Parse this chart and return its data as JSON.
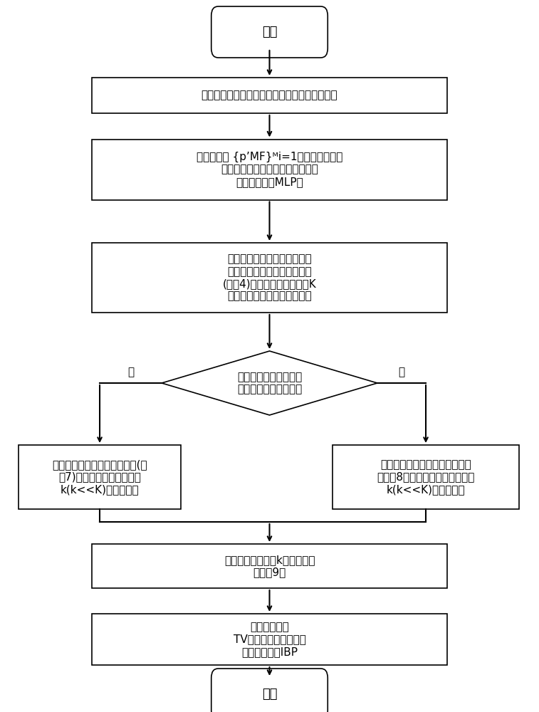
{
  "bg_color": "#ffffff",
  "line_color": "#000000",
  "box_color": "#ffffff",
  "text_color": "#000000",
  "start_label": "开始",
  "end_label": "结束",
  "box1_label": "构造训练特征集：提取训练块的中、高频特征对",
  "box2_line1": "输入测试块 {p",
  "box2_line1b": "MF",
  "box2_line1c": "}",
  "box2_line1d": "i=1",
  "box2_line1e": "得到中频特征；",
  "box2_line2": "用测地聚类将训练集聚为多个类别",
  "box2_line3": "（最大线性块MLP）",
  "box3_line1": "利用中频特征相似度，为输入",
  "box3_line2": "测试块选取最相似的训练子集",
  "box3_line3": "(公式4)，在所选子集内找到K",
  "box3_line4": "个中频最近邻及对应高频近邻",
  "diamond_line1": "求当前测试块的梯度直",
  "diamond_line2": "方图判断是否为边缘块",
  "yes_label": "是",
  "no_label": "否",
  "box_left_line1": "运用对边缘块的筛选判别准则(公",
  "box_left_line2": "式7)，对邻域进行精选得到",
  "box_left_line3": "k(k<<K)个高频近邻",
  "box_right_line1": "运用对非边缘块的筛选判别准则",
  "box_right_line2": "（公式8），对邻域进行精选得到",
  "box_right_line3": "k(k<<K)个高频近邻",
  "box4_line1": "运用最小二乘法将k个近邻嵌入",
  "box4_line2": "（公式9）",
  "box5_line1": "后处理操作：",
  "box5_line2": "TV的图像去模糊正则，",
  "box5_line3": "迭代反向投影IBP"
}
